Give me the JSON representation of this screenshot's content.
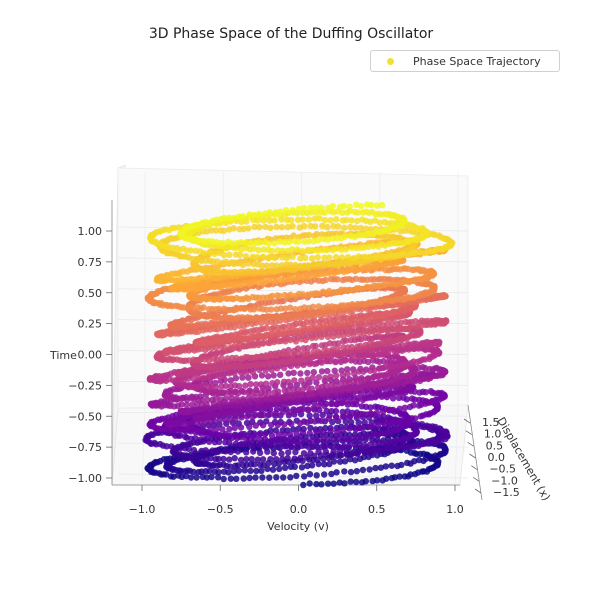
{
  "chart_data": {
    "type": "scatter3d",
    "title": "3D Phase Space of the Duffing Oscillator",
    "xlabel": "Velocity (v)",
    "ylabel": "Displacement (x)",
    "zlabel": "Time",
    "legend": {
      "label": "Phase Space Trajectory",
      "position": "top-right"
    },
    "xlim": [
      -1.2,
      1.2
    ],
    "ylim": [
      -1.6,
      1.6
    ],
    "zlim": [
      -1.05,
      1.2
    ],
    "x_ticks": [
      "−1.0",
      "−0.5",
      "0.0",
      "0.5",
      "1.0"
    ],
    "y_ticks": [
      "1.5",
      "1.0",
      "0.5",
      "0.0",
      "−0.5",
      "−1.0",
      "−1.5"
    ],
    "z_ticks": [
      "1.00",
      "0.75",
      "0.50",
      "0.25",
      "0.00",
      "−0.25",
      "−0.50",
      "−0.75",
      "−1.00"
    ],
    "colormap": [
      "#0d0887",
      "#6a00a8",
      "#b12a90",
      "#e16462",
      "#fca636",
      "#f0f921"
    ],
    "grid": true
  }
}
